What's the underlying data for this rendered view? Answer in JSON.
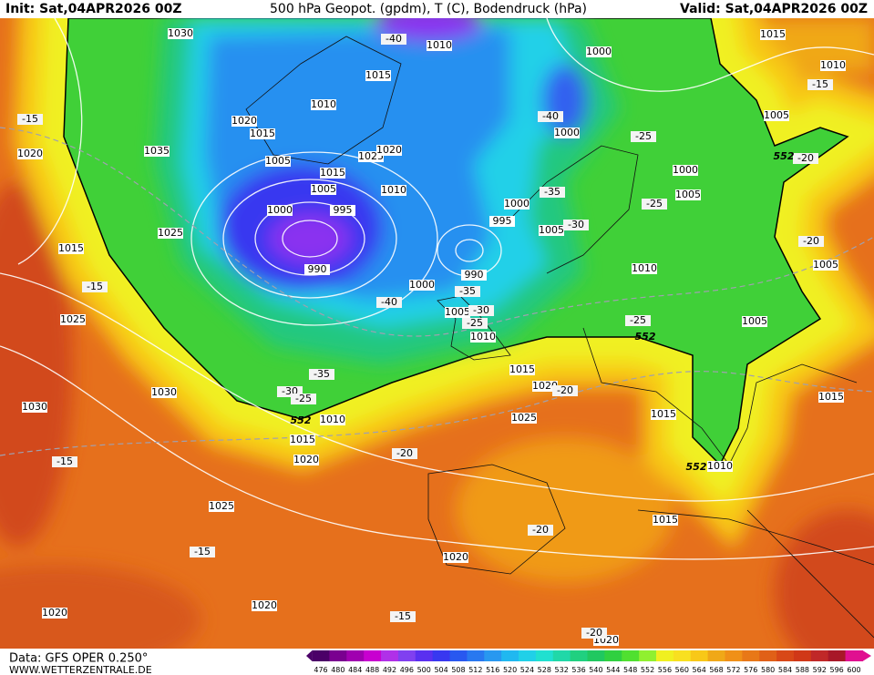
{
  "header": {
    "init": "Init: Sat,04APR2026 00Z",
    "title": "500 hPa Geopot. (gpdm), T (C), Bodendruck (hPa)",
    "valid": "Valid: Sat,04APR2026 00Z"
  },
  "footer": {
    "data": "Data: GFS OPER 0.250°",
    "site": "WWW.WETTERZENTRALE.DE"
  },
  "colorbar": {
    "ticks": [
      476,
      480,
      484,
      488,
      492,
      496,
      500,
      504,
      508,
      512,
      516,
      520,
      524,
      528,
      532,
      536,
      540,
      544,
      548,
      552,
      556,
      560,
      564,
      568,
      572,
      576,
      580,
      584,
      588,
      592,
      596,
      600
    ],
    "colors": [
      "#4b0068",
      "#7a0090",
      "#a000b0",
      "#c800d0",
      "#b030e8",
      "#8040f0",
      "#5a30f0",
      "#3838f0",
      "#2858f0",
      "#2878f0",
      "#2898f0",
      "#20b8f0",
      "#20d0e8",
      "#20e0d0",
      "#20d8a8",
      "#20d080",
      "#20c860",
      "#30d040",
      "#50e030",
      "#90f030",
      "#f0f020",
      "#f8e020",
      "#f8c818",
      "#f0a818",
      "#f09018",
      "#e87818",
      "#e06018",
      "#d84818",
      "#d03818",
      "#c02828",
      "#a81828",
      "#e01090"
    ]
  },
  "map": {
    "pressure_labels": [
      1030,
      1010,
      1000,
      1015,
      1010,
      1015,
      1010,
      1020,
      1015,
      1035,
      1020,
      1025,
      1020,
      1000,
      1005,
      1000,
      1005,
      1015,
      1005,
      1010,
      1005,
      1000,
      1000,
      995,
      995,
      1005,
      1025,
      1015,
      990,
      990,
      1000,
      1010,
      1005,
      1025,
      1005,
      1010,
      1005,
      1015,
      1020,
      1030,
      1030,
      1025,
      1015,
      1015,
      1010,
      1015,
      1020,
      1010,
      1025,
      1015,
      1020,
      1020,
      1020,
      1020
    ],
    "temperature_labels": [
      -40,
      -15,
      -15,
      -40,
      -25,
      -20,
      -35,
      -25,
      -30,
      -20,
      -15,
      -35,
      -40,
      -30,
      -25,
      -25,
      -35,
      -30,
      -25,
      -20,
      -20,
      -15,
      -20,
      -15,
      -15,
      -20
    ],
    "geopotential_labels": [
      552,
      552,
      552,
      552
    ]
  }
}
